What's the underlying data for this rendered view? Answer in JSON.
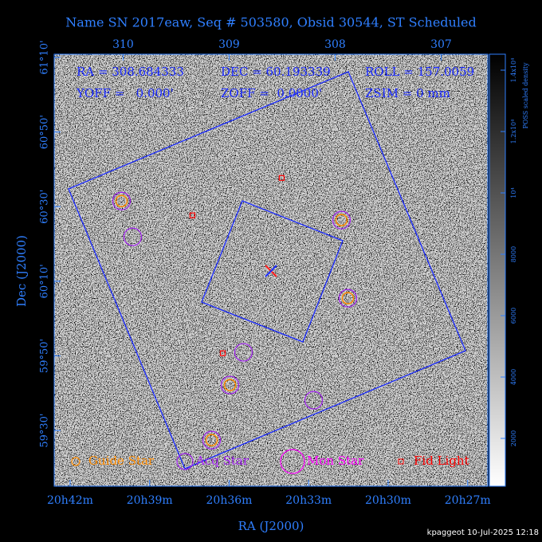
{
  "chart_data": {
    "type": "scatter",
    "title": "Name SN 2017eaw, Seq # 503580, Obsid 30544, ST Scheduled",
    "header": [
      "RA = 308.684333",
      "DEC = 60.193339",
      "ROLL = 157.0059",
      "YOFF =   0.000'",
      "ZOFF =  0.0000'",
      "ZSIM = 0 mm"
    ],
    "x_label": "RA (J2000)",
    "y_label": "Dec (J2000)",
    "xlim": [
      310.65,
      306.56
    ],
    "ylim": [
      59.251,
      61.181
    ],
    "xticks": [
      {
        "value": 310.5,
        "label": "20h42m"
      },
      {
        "value": 309.75,
        "label": "20h39m"
      },
      {
        "value": 309.0,
        "label": "20h36m"
      },
      {
        "value": 308.25,
        "label": "20h33m"
      },
      {
        "value": 307.5,
        "label": "20h30m"
      },
      {
        "value": 306.75,
        "label": "20h27m"
      }
    ],
    "x2ticks": [
      310,
      309,
      308,
      307
    ],
    "yticks": [
      {
        "value": 61.1667,
        "label": "61°10'"
      },
      {
        "value": 60.8333,
        "label": "60°50'"
      },
      {
        "value": 60.5,
        "label": "60°30'"
      },
      {
        "value": 60.1667,
        "label": "60°10'"
      },
      {
        "value": 59.8333,
        "label": "59°50'"
      },
      {
        "value": 59.5,
        "label": "59°30'"
      }
    ],
    "colorbar_label": "POSS scaled density",
    "cbarlim": [
      442,
      14520
    ],
    "cbarticks": [
      2000,
      4000,
      6000,
      8000,
      {
        "value": 10000,
        "label": "10⁴"
      },
      {
        "value": 12000,
        "label": "1.2x10⁴"
      },
      {
        "value": 14000,
        "label": "1.4x10⁴"
      }
    ],
    "series": [
      {
        "name": "Guide Star",
        "color": "#ff8c00",
        "x": [
          310.015,
          307.94,
          307.88,
          308.992,
          309.165
        ],
        "values": [
          60.525,
          60.44,
          60.091,
          59.703,
          59.457
        ]
      },
      {
        "name": "Acq Star",
        "color": "#a020f0",
        "x": [
          310.015,
          307.94,
          307.88,
          308.992,
          309.165,
          309.91,
          308.865,
          308.203
        ],
        "values": [
          60.525,
          60.44,
          60.091,
          59.703,
          59.457,
          60.365,
          59.849,
          59.635
        ]
      },
      {
        "name": "Mon Star",
        "color": "#ff00ff",
        "x": [],
        "values": []
      },
      {
        "name": "Fid Light",
        "color": "#ff0000",
        "x": [
          308.504,
          309.346,
          309.06
        ],
        "values": [
          60.628,
          60.461,
          59.845
        ]
      }
    ],
    "footer": "kpaggeot 10-Jul-2025 12:18"
  }
}
